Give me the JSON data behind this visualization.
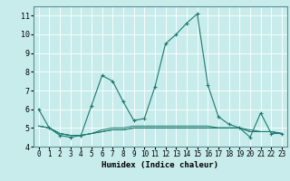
{
  "title": "",
  "xlabel": "Humidex (Indice chaleur)",
  "ylabel": "",
  "xlim": [
    -0.5,
    23.5
  ],
  "ylim": [
    4,
    11.5
  ],
  "yticks": [
    4,
    5,
    6,
    7,
    8,
    9,
    10,
    11
  ],
  "xticks": [
    0,
    1,
    2,
    3,
    4,
    5,
    6,
    7,
    8,
    9,
    10,
    11,
    12,
    13,
    14,
    15,
    16,
    17,
    18,
    19,
    20,
    21,
    22,
    23
  ],
  "bg_color": "#c8ecec",
  "line_color": "#1a7a6e",
  "grid_color": "#ffffff",
  "lines": [
    [
      6.0,
      5.0,
      4.6,
      4.5,
      4.6,
      6.2,
      7.8,
      7.5,
      6.4,
      5.4,
      5.5,
      7.2,
      9.5,
      10.0,
      10.6,
      11.1,
      7.3,
      5.6,
      5.2,
      5.0,
      4.5,
      5.8,
      4.7,
      4.7
    ],
    [
      5.1,
      5.0,
      4.7,
      4.6,
      4.6,
      4.7,
      4.8,
      4.9,
      4.9,
      5.0,
      5.0,
      5.0,
      5.0,
      5.0,
      5.0,
      5.0,
      5.0,
      5.0,
      5.0,
      5.0,
      4.8,
      4.8,
      4.8,
      4.7
    ],
    [
      5.1,
      5.0,
      4.7,
      4.6,
      4.6,
      4.7,
      4.8,
      4.9,
      4.9,
      5.0,
      5.0,
      5.0,
      5.0,
      5.0,
      5.0,
      5.0,
      5.0,
      5.0,
      5.0,
      5.0,
      4.8,
      4.8,
      4.8,
      4.7
    ],
    [
      5.1,
      5.0,
      4.7,
      4.6,
      4.6,
      4.7,
      4.9,
      5.0,
      5.0,
      5.1,
      5.1,
      5.1,
      5.1,
      5.1,
      5.1,
      5.1,
      5.1,
      5.0,
      5.0,
      5.0,
      4.9,
      4.8,
      4.8,
      4.7
    ]
  ]
}
